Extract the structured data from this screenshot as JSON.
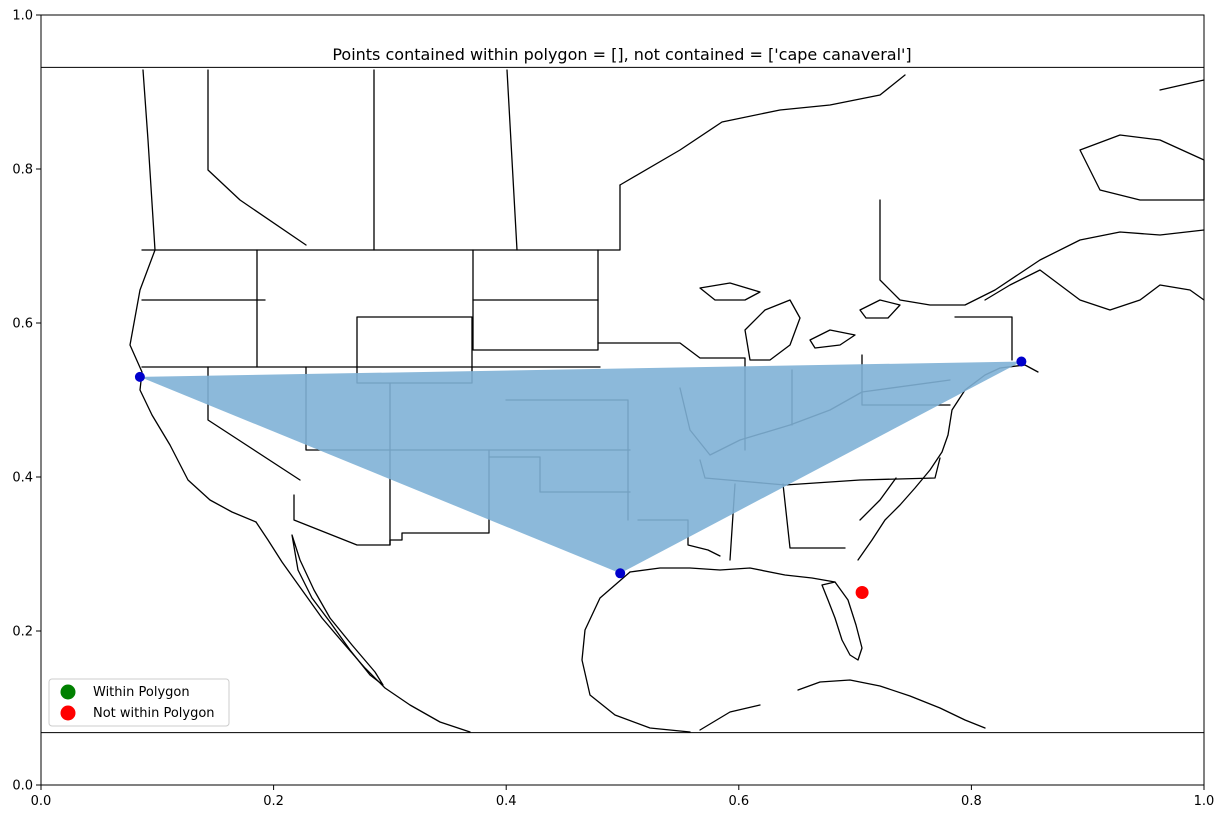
{
  "chart_data": {
    "type": "scatter",
    "title": "Points contained within polygon = [], not contained = ['cape canaveral']",
    "xlim": [
      0.0,
      1.0
    ],
    "ylim": [
      0.0,
      1.0
    ],
    "x_ticks": [
      0.0,
      0.2,
      0.4,
      0.6,
      0.8,
      1.0
    ],
    "y_ticks": [
      0.0,
      0.2,
      0.4,
      0.6,
      0.8,
      1.0
    ],
    "x_tick_labels": [
      "0.0",
      "0.2",
      "0.4",
      "0.6",
      "0.8",
      "1.0"
    ],
    "y_tick_labels": [
      "0.0",
      "0.2",
      "0.4",
      "0.6",
      "0.8",
      "1.0"
    ],
    "xlabel": "",
    "ylabel": "",
    "grid": false,
    "map_frame": {
      "y_bottom": 0.068,
      "y_top": 0.932
    },
    "polygon": {
      "color": "#7fb1d6",
      "vertices": [
        {
          "x": 0.085,
          "y": 0.53
        },
        {
          "x": 0.843,
          "y": 0.55
        },
        {
          "x": 0.498,
          "y": 0.275
        }
      ]
    },
    "vertex_color": "#0000cc",
    "points": [
      {
        "name": "cape canaveral",
        "x": 0.706,
        "y": 0.25,
        "within": false
      }
    ],
    "legend": {
      "placement": "lower-left",
      "entries": [
        {
          "label": "Within Polygon",
          "color": "#008000"
        },
        {
          "label": "Not within Polygon",
          "color": "#ff0000"
        }
      ]
    }
  }
}
